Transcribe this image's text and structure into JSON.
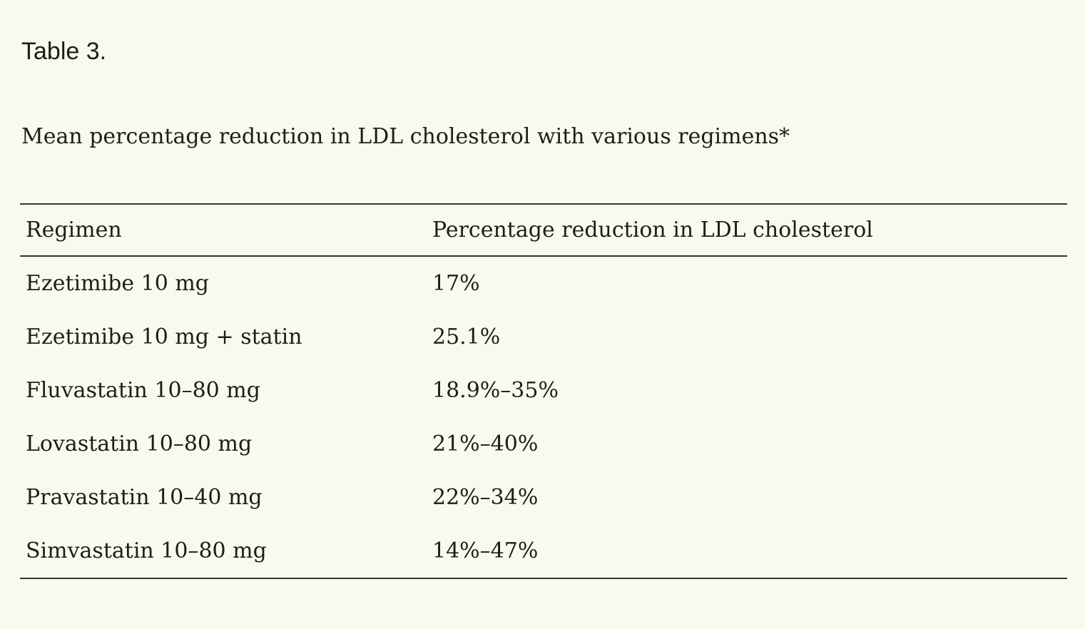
{
  "page": {
    "background_color": "#f7fbed",
    "text_color": "#1d1d1a",
    "rule_color": "#34342e"
  },
  "table_label": "Table 3.",
  "caption": "Mean percentage reduction in LDL cholesterol with various regimens*",
  "table": {
    "columns": [
      "Regimen",
      "Percentage reduction in LDL cholesterol"
    ],
    "rows": [
      [
        "Ezetimibe 10 mg",
        "17%"
      ],
      [
        "Ezetimibe 10 mg + statin",
        "25.1%"
      ],
      [
        "Fluvastatin 10–80 mg",
        "18.9%–35%"
      ],
      [
        "Lovastatin 10–80 mg",
        "21%–40%"
      ],
      [
        "Pravastatin 10–40 mg",
        "22%–34%"
      ],
      [
        "Simvastatin 10–80 mg",
        "14%–47%"
      ]
    ]
  }
}
